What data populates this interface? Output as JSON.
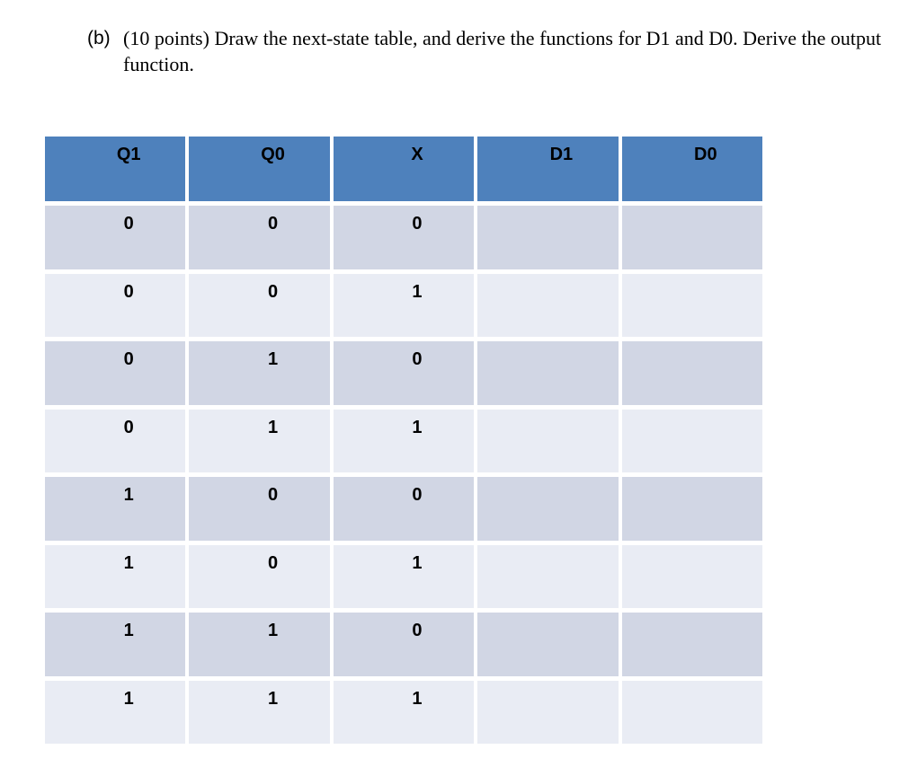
{
  "question": {
    "label": "(b)",
    "text": "(10 points) Draw the next-state table, and derive the functions for D1 and D0. Derive the output function."
  },
  "table": {
    "headers": [
      "Q1",
      "Q0",
      "X",
      "D1",
      "D0"
    ],
    "rows": [
      [
        "0",
        "0",
        "0",
        "",
        ""
      ],
      [
        "0",
        "0",
        "1",
        "",
        ""
      ],
      [
        "0",
        "1",
        "0",
        "",
        ""
      ],
      [
        "0",
        "1",
        "1",
        "",
        ""
      ],
      [
        "1",
        "0",
        "0",
        "",
        ""
      ],
      [
        "1",
        "0",
        "1",
        "",
        ""
      ],
      [
        "1",
        "1",
        "0",
        "",
        ""
      ],
      [
        "1",
        "1",
        "1",
        "",
        ""
      ]
    ],
    "colors": {
      "header_bg": "#4e81bc",
      "row_dark": "#d1d6e4",
      "row_light": "#e9ecf4",
      "text": "#000000",
      "page_bg": "#ffffff"
    }
  }
}
